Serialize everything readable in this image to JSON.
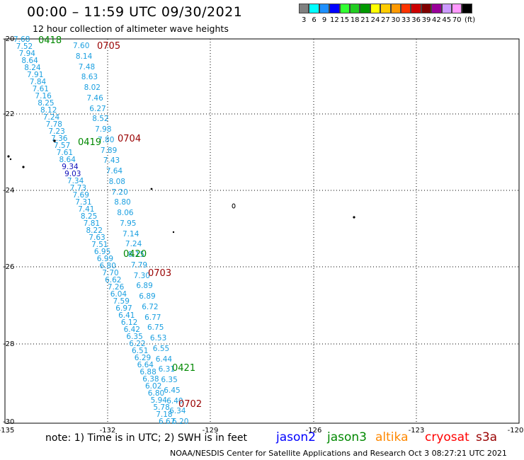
{
  "header": {
    "title": "00:00 – 11:59 UTC 09/30/2021",
    "subtitle": "12 hour collection of altimeter wave heights"
  },
  "scale": {
    "colors": [
      "#808080",
      "#00ffff",
      "#1e90ff",
      "#0000ff",
      "#33ff33",
      "#22cc22",
      "#009900",
      "#ffff00",
      "#ffcc00",
      "#ff9900",
      "#ff3300",
      "#cc0000",
      "#800000",
      "#990099",
      "#cc99ff",
      "#ff99ff",
      "#000000"
    ],
    "labels": [
      "3",
      "6",
      "9",
      "12",
      "15",
      "18",
      "21",
      "24",
      "27",
      "30",
      "33",
      "36",
      "39",
      "42",
      "45",
      "70",
      "(ft)"
    ]
  },
  "axes": {
    "lon_labels": [
      "-135",
      "-132",
      "-129",
      "-126",
      "-123",
      "-120"
    ],
    "lat_labels": [
      "-20",
      "-22",
      "-24",
      "-26",
      "-28",
      "-30"
    ]
  },
  "colors": {
    "wave_cyan": "#1a9fe0",
    "wave_blue": "#1111bb",
    "jason3": "#008800",
    "cryosat": "#990000",
    "jason2": "#0000ff",
    "altika": "#ff8800",
    "cryosat_label": "#ff0000",
    "s3a": "#990000"
  },
  "legend": {
    "note": "note: 1) Time is in UTC; 2) SWH is in feet",
    "jason2": "jason2",
    "jason3": "jason3",
    "altika": "altika",
    "cryosat": "cryosat",
    "s3a": "s3a"
  },
  "footer": "NOAA/NESDIS Center for Satellite Applications and Research   Oct  3 08:27:21 UTC 2021",
  "time_tags": {
    "t0418": "0418",
    "t0419": "0419",
    "t0420": "0420",
    "t0421": "0421",
    "t0705": "0705",
    "t0704": "0704",
    "t0703": "0703",
    "t0702": "0702"
  },
  "track_a": [
    "7.68",
    "7.52",
    "7.94",
    "8.64",
    "8.24",
    "7.91",
    "7.84",
    "7.61",
    "7.16",
    "8.25",
    "8.12",
    "7.24",
    "7.78",
    "7.23",
    "7.36",
    "7.57",
    "7.61",
    "8.64",
    "9.34",
    "9.03",
    "7.34",
    "7.73",
    "7.69",
    "7.31",
    "7.41",
    "8.25",
    "7.81",
    "8.22",
    "7.63",
    "7.51",
    "6.95",
    "6.99",
    "6.80",
    "7.70",
    "6.62",
    "7.26",
    "6.04",
    "7.59",
    "6.97",
    "6.41",
    "6.12",
    "6.42",
    "6.35",
    "6.22",
    "6.51",
    "6.29",
    "6.64",
    "6.88",
    "6.38",
    "6.02",
    "6.80",
    "5.94",
    "5.78",
    "7.18",
    "6.67"
  ],
  "track_a_blue": [
    18,
    19
  ],
  "track_b": [
    "7.60",
    "8.14",
    "7.48",
    "8.63",
    "8.02",
    "7.46",
    "6.27",
    "8.52",
    "7.98",
    "7.80",
    "7.89",
    "7.43",
    "7.64",
    "8.08",
    "7.20",
    "8.80",
    "8.06",
    "7.95",
    "7.14",
    "7.24",
    "8.15",
    "7.79",
    "7.30",
    "6.89",
    "6.89",
    "6.72",
    "6.77",
    "6.75",
    "6.53",
    "6.55",
    "6.44",
    "6.31",
    "6.35",
    "6.45",
    "6.40",
    "6.34",
    "6.20"
  ]
}
